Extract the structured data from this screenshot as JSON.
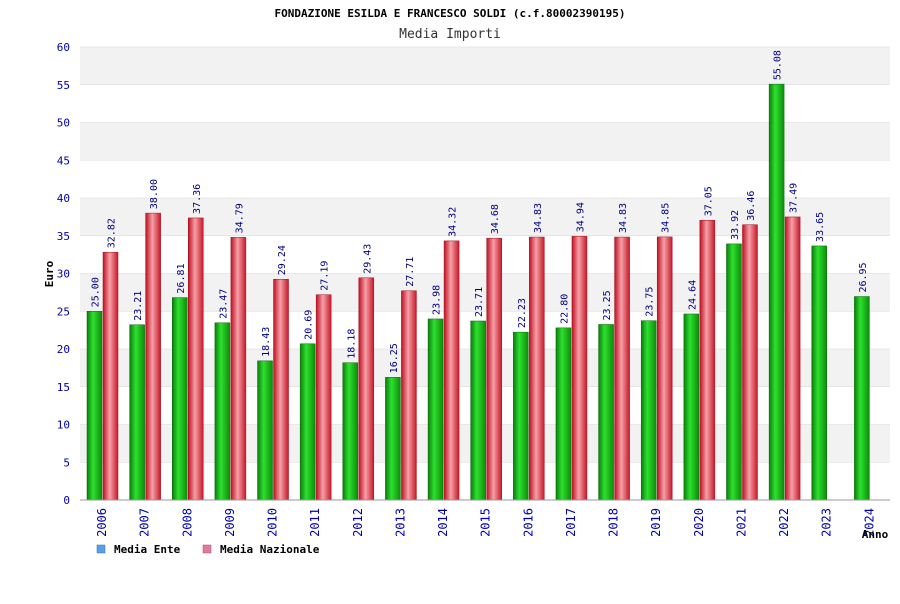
{
  "chart_data": {
    "type": "bar",
    "title": "FONDAZIONE ESILDA E FRANCESCO SOLDI (c.f.80002390195)",
    "subtitle": "Media Importi",
    "xlabel": "Anno",
    "ylabel": "Euro",
    "ylim": [
      0,
      60
    ],
    "yticks": [
      "0",
      "5",
      "10",
      "15",
      "20",
      "25",
      "30",
      "35",
      "40",
      "45",
      "50",
      "55",
      "60"
    ],
    "grid": true,
    "legend_position": "bottom-left",
    "categories": [
      "2006",
      "2007",
      "2008",
      "2009",
      "2010",
      "2011",
      "2012",
      "2013",
      "2014",
      "2015",
      "2016",
      "2017",
      "2018",
      "2019",
      "2020",
      "2021",
      "2022",
      "2023",
      "2024"
    ],
    "series": [
      {
        "name": "Media Ente",
        "color": "#16b816",
        "values": [
          25.0,
          23.21,
          26.81,
          23.47,
          18.43,
          20.69,
          18.18,
          16.25,
          23.98,
          23.71,
          22.23,
          22.8,
          23.25,
          23.75,
          24.64,
          33.92,
          55.08,
          33.65,
          26.95
        ],
        "labels": [
          "25.00",
          "23.21",
          "26.81",
          "23.47",
          "18.43",
          "20.69",
          "18.18",
          "16.25",
          "23.98",
          "23.71",
          "22.23",
          "22.80",
          "23.25",
          "23.75",
          "24.64",
          "33.92",
          "55.08",
          "33.65",
          "26.95"
        ]
      },
      {
        "name": "Media Nazionale",
        "color": "#e8283a",
        "values": [
          32.82,
          38.0,
          37.36,
          34.79,
          29.24,
          27.19,
          29.43,
          27.71,
          34.32,
          34.68,
          34.83,
          34.94,
          34.83,
          34.85,
          37.05,
          36.46,
          37.49,
          null,
          null
        ],
        "labels": [
          "32.82",
          "38.00",
          "37.36",
          "34.79",
          "29.24",
          "27.19",
          "29.43",
          "27.71",
          "34.32",
          "34.68",
          "34.83",
          "34.94",
          "34.83",
          "34.85",
          "37.05",
          "36.46",
          "37.49",
          null,
          null
        ]
      }
    ],
    "legend": [
      {
        "label": "Media Ente",
        "color": "#5aa0e6"
      },
      {
        "label": "Media Nazionale",
        "color": "#e07aa0"
      }
    ],
    "colors": {
      "title": "#000000",
      "axis_text": "#0000aa",
      "value_label": "#000080",
      "band": "#f2f2f2",
      "grid": "#d8d8d8"
    }
  }
}
